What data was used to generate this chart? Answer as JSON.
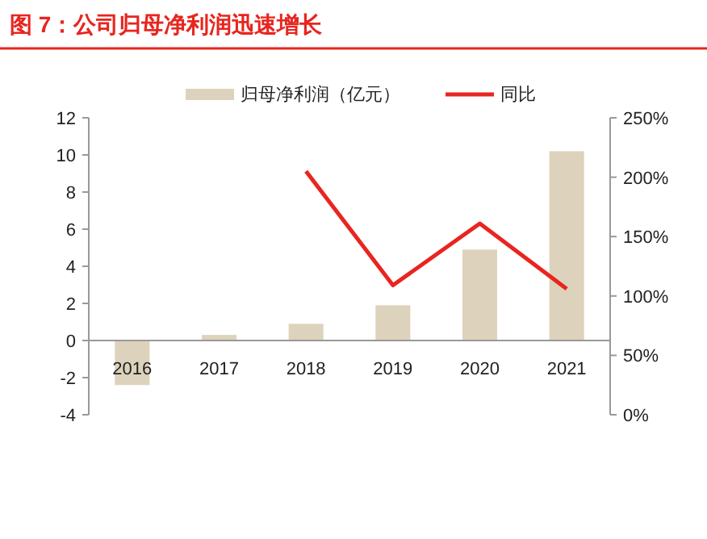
{
  "chart_data": {
    "type": "bar",
    "title": "图 7：公司归母净利润迅速增长",
    "categories": [
      "2016",
      "2017",
      "2018",
      "2019",
      "2020",
      "2021"
    ],
    "series": [
      {
        "name": "归母净利润（亿元）",
        "color": "#ddd3bc",
        "values": [
          -2.4,
          0.3,
          0.9,
          1.9,
          4.9,
          10.2
        ]
      },
      {
        "name": "同比",
        "type": "line",
        "axis": "y2",
        "color": "#e8251f",
        "values": [
          null,
          null,
          205,
          109,
          161,
          106
        ]
      }
    ],
    "ylim": [
      -4,
      12
    ],
    "yticks": [
      -4,
      -2,
      0,
      2,
      4,
      6,
      8,
      10,
      12
    ],
    "y2lim": [
      0,
      250
    ],
    "y2ticks": [
      {
        "value": 0,
        "label": "0%"
      },
      {
        "value": 50,
        "label": "50%"
      },
      {
        "value": 100,
        "label": "100%"
      },
      {
        "value": 150,
        "label": "150%"
      },
      {
        "value": 200,
        "label": "200%"
      },
      {
        "value": 250,
        "label": "250%"
      }
    ],
    "legend": "top",
    "grid": false
  }
}
